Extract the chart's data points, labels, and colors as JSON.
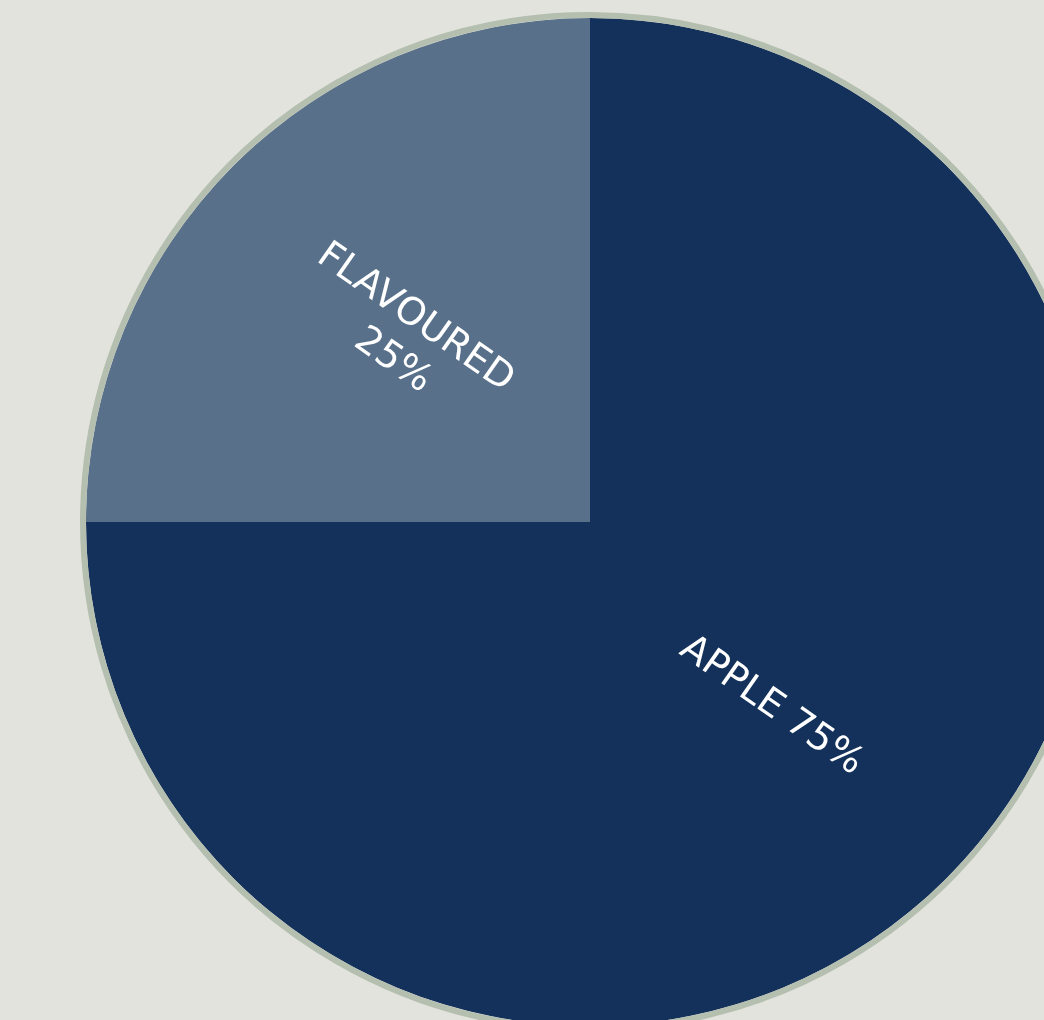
{
  "chart_data": {
    "type": "pie",
    "categories": [
      "APPLE",
      "FLAVOURED"
    ],
    "values": [
      75,
      25
    ],
    "colors": [
      "#13315a",
      "#587089"
    ],
    "value_labels": [
      "75%",
      "25%"
    ]
  }
}
